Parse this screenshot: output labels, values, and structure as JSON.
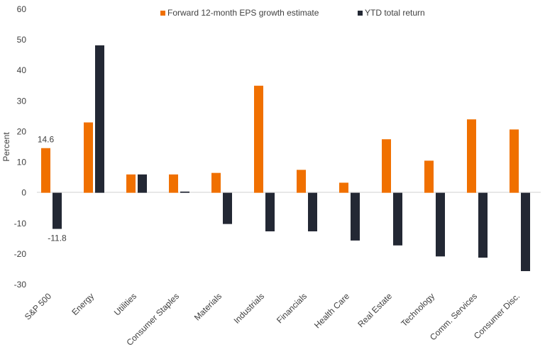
{
  "chart_data": {
    "type": "bar",
    "ylabel": "Percent",
    "ylim": [
      -30,
      60
    ],
    "yticks": [
      -30,
      -20,
      -10,
      0,
      10,
      20,
      30,
      40,
      50,
      60
    ],
    "categories": [
      "S&P 500",
      "Energy",
      "Utilities",
      "Consumer Staples",
      "Materials",
      "Industrials",
      "Financials",
      "Health Care",
      "Real Estate",
      "Technology",
      "Comm. Services",
      "Consumer Disc."
    ],
    "series": [
      {
        "name": "Forward 12-month EPS growth estimate",
        "color": "#f07000",
        "values": [
          14.6,
          23.0,
          6.0,
          6.0,
          6.5,
          35.0,
          7.5,
          3.3,
          17.5,
          10.5,
          24.0,
          20.7
        ]
      },
      {
        "name": "YTD total return",
        "color": "#232834",
        "values": [
          -11.8,
          48.2,
          6.0,
          0.4,
          -10.2,
          -12.6,
          -12.6,
          -15.6,
          -17.2,
          -20.8,
          -21.2,
          -25.6
        ]
      }
    ],
    "data_labels": [
      {
        "series": 0,
        "index": 0,
        "text": "14.6"
      },
      {
        "series": 1,
        "index": 0,
        "text": "-11.8"
      }
    ],
    "legend_position": "top",
    "grid": false
  }
}
